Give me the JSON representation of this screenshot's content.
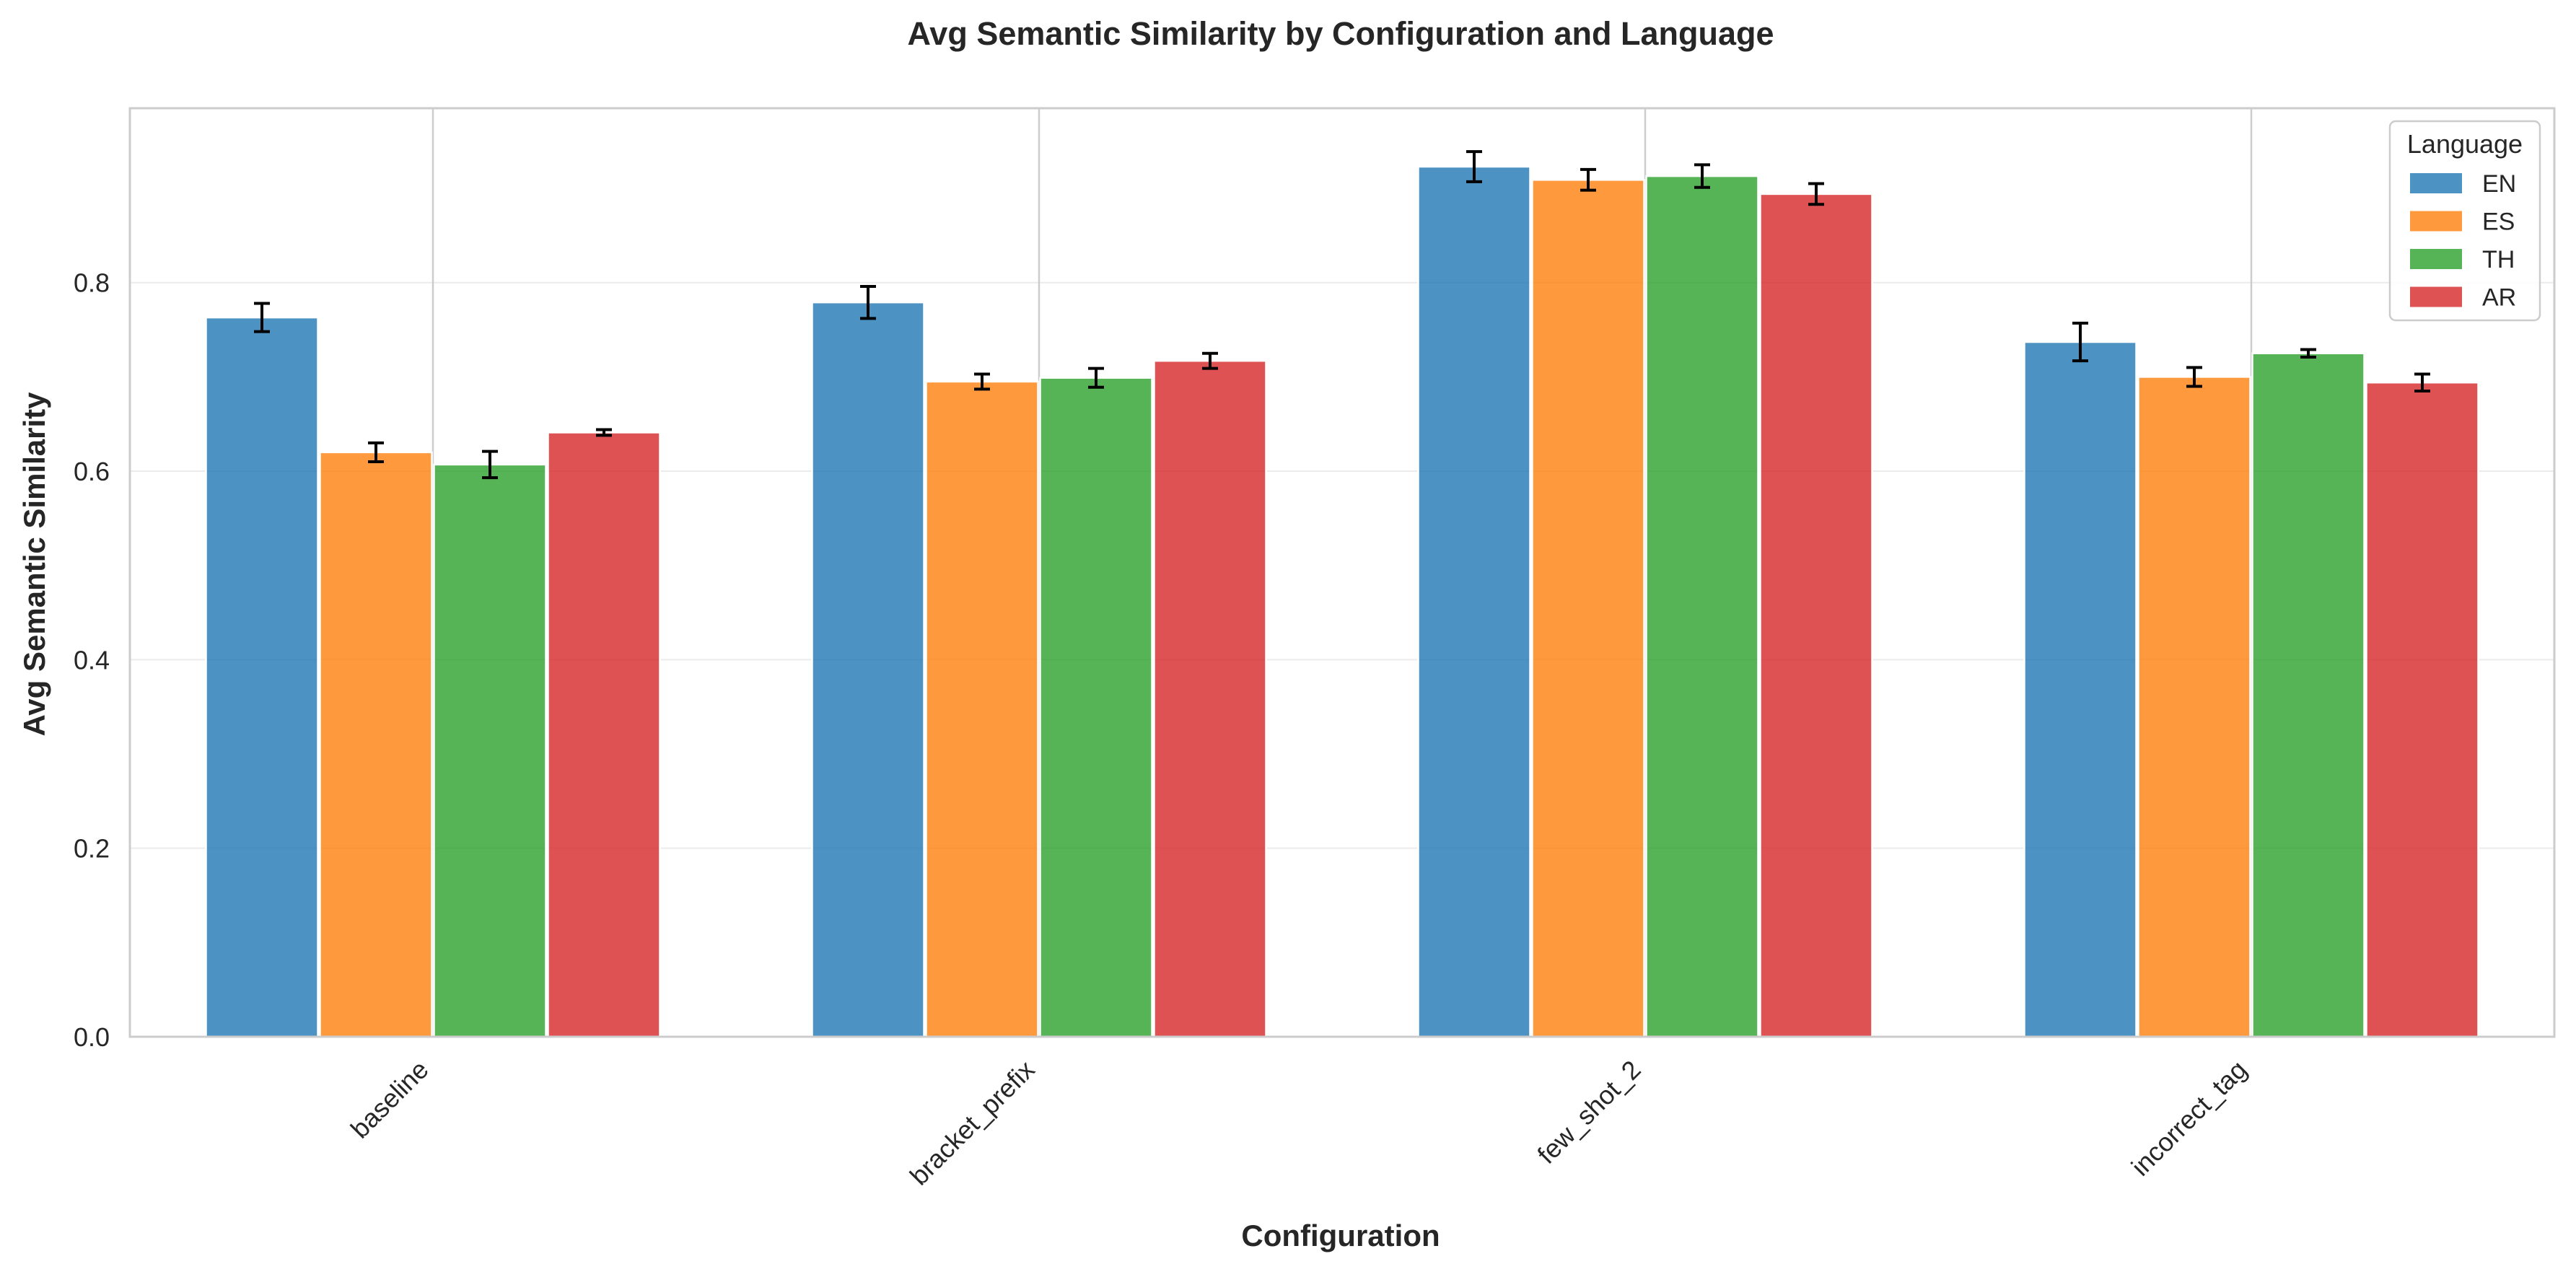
{
  "chart_data": {
    "type": "bar",
    "title": "Avg Semantic Similarity by Configuration and Language",
    "xlabel": "Configuration",
    "ylabel": "Avg Semantic Similarity",
    "categories": [
      "baseline",
      "bracket_prefix",
      "few_shot_2",
      "incorrect_tag"
    ],
    "ylim": [
      0,
      0.985
    ],
    "yticks": [
      "0.0",
      "0.2",
      "0.4",
      "0.6",
      "0.8"
    ],
    "ytick_values": [
      0,
      0.2,
      0.4,
      0.6,
      0.8
    ],
    "grid": true,
    "legend": {
      "title": "Language",
      "placement": "top-right"
    },
    "series": [
      {
        "name": "EN",
        "color": "#1f77b4",
        "values": [
          0.763,
          0.779,
          0.923,
          0.737
        ],
        "errors": [
          0.015,
          0.017,
          0.016,
          0.02
        ]
      },
      {
        "name": "ES",
        "color": "#ff7f0e",
        "values": [
          0.62,
          0.695,
          0.909,
          0.7
        ],
        "errors": [
          0.01,
          0.008,
          0.011,
          0.01
        ]
      },
      {
        "name": "TH",
        "color": "#2ca02c",
        "values": [
          0.607,
          0.699,
          0.913,
          0.725
        ],
        "errors": [
          0.014,
          0.01,
          0.012,
          0.004
        ]
      },
      {
        "name": "AR",
        "color": "#d62728",
        "values": [
          0.641,
          0.717,
          0.894,
          0.694
        ],
        "errors": [
          0.003,
          0.008,
          0.011,
          0.009
        ]
      }
    ]
  }
}
